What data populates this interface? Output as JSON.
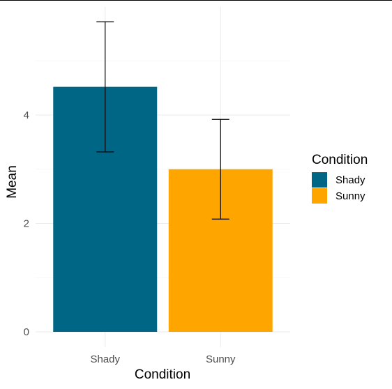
{
  "chart_data": {
    "type": "bar",
    "title": "",
    "xlabel": "Condition",
    "ylabel": "Mean",
    "categories": [
      "Shady",
      "Sunny"
    ],
    "values": [
      4.52,
      3.0
    ],
    "error_bars": [
      {
        "lower": 3.32,
        "upper": 5.72
      },
      {
        "lower": 2.08,
        "upper": 3.92
      }
    ],
    "colors": [
      "#006685",
      "#FFA500"
    ],
    "ylim": [
      0,
      5.95
    ],
    "y_ticks": [
      0,
      2,
      4
    ],
    "y_tick_labels": [
      "0",
      "2",
      "4"
    ],
    "grid": true,
    "legend": {
      "title": "Condition",
      "placement": "right",
      "items": [
        "Shady",
        "Sunny"
      ]
    }
  }
}
